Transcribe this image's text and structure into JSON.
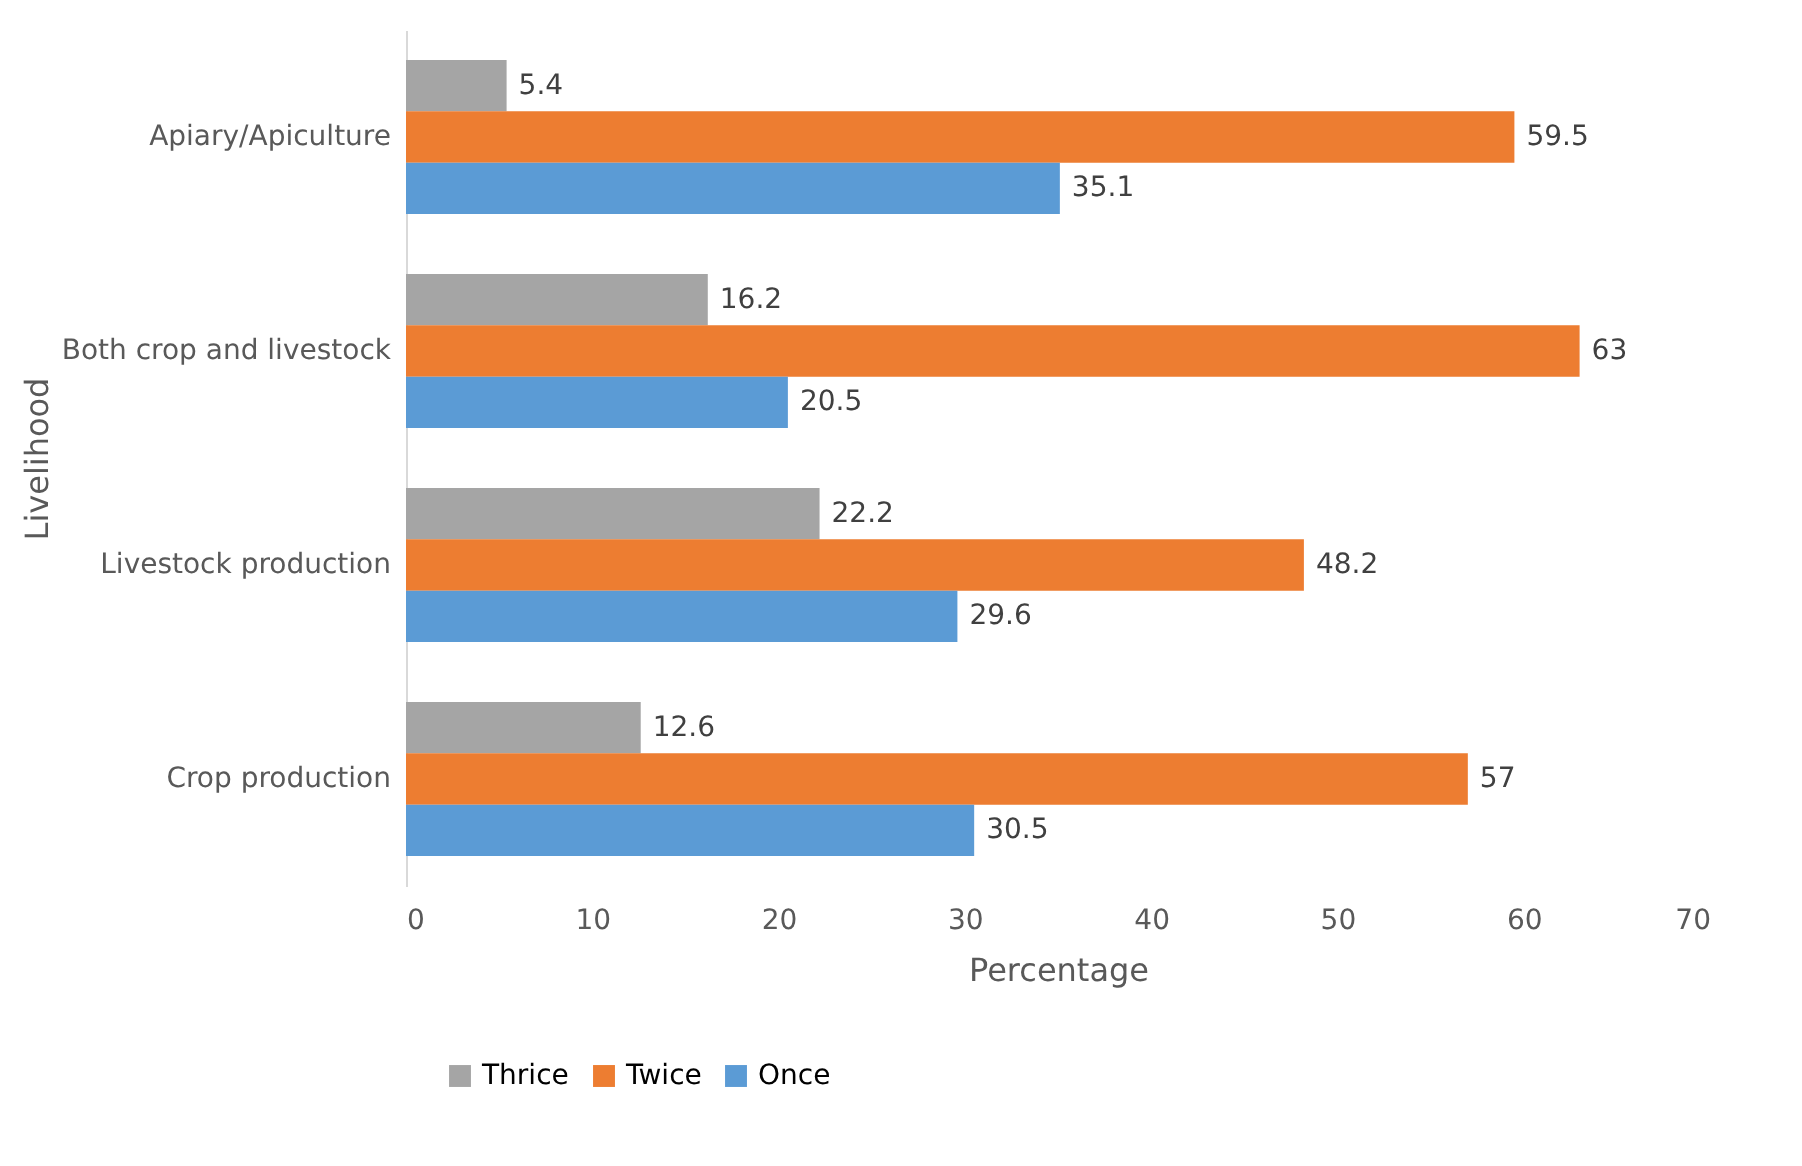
{
  "chart_data": {
    "type": "bar",
    "orientation": "horizontal",
    "xlabel": "Percentage",
    "ylabel": "Livelihood",
    "categories": [
      "Apiary/Apiculture",
      "Both crop and livestock",
      "Livestock production",
      "Crop production"
    ],
    "series": [
      {
        "name": "Thrice",
        "color": "#a5a5a5",
        "values": [
          5.4,
          16.2,
          22.2,
          12.6
        ]
      },
      {
        "name": "Twice",
        "color": "#ed7d31",
        "values": [
          59.5,
          63,
          48.2,
          57
        ]
      },
      {
        "name": "Once",
        "color": "#5b9bd5",
        "values": [
          35.1,
          20.5,
          29.6,
          30.5
        ]
      }
    ],
    "xlim": [
      0,
      70
    ],
    "xticks": [
      0,
      10,
      20,
      30,
      40,
      50,
      60,
      70
    ],
    "grid": false,
    "legend": "bottom",
    "data_labels": true
  }
}
